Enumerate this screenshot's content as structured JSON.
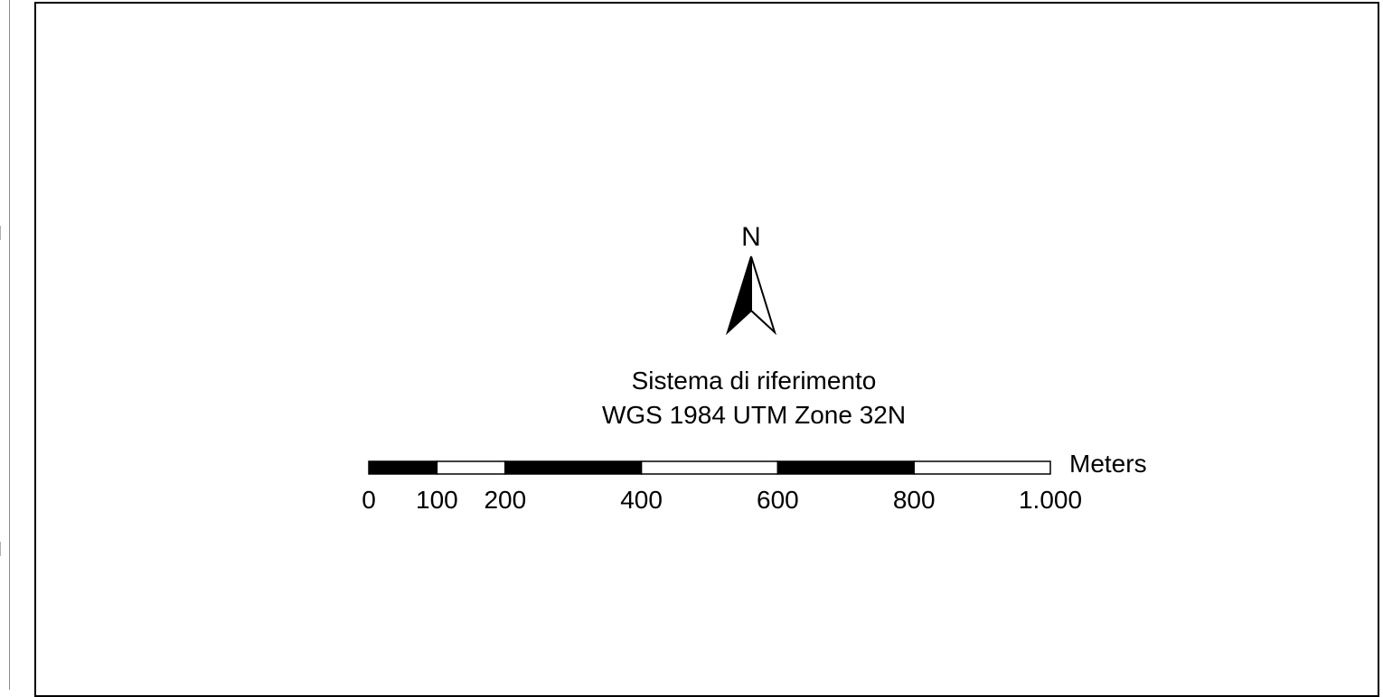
{
  "map_layout": {
    "north_arrow": {
      "label": "N",
      "icon": "north-arrow-icon"
    },
    "coordinate_system": {
      "line1": "Sistema di riferimento",
      "line2": "WGS 1984 UTM Zone 32N"
    },
    "scale_bar": {
      "units": "Meters",
      "tick_labels": [
        "0",
        "100",
        "200",
        "400",
        "600",
        "800",
        "1.000"
      ],
      "tick_values": [
        0,
        100,
        200,
        400,
        600,
        800,
        1000
      ],
      "segments": [
        {
          "from": 0,
          "to": 100,
          "fill": "black"
        },
        {
          "from": 100,
          "to": 200,
          "fill": "white"
        },
        {
          "from": 200,
          "to": 400,
          "fill": "black"
        },
        {
          "from": 400,
          "to": 600,
          "fill": "white"
        },
        {
          "from": 600,
          "to": 800,
          "fill": "black"
        },
        {
          "from": 800,
          "to": 1000,
          "fill": "white"
        }
      ]
    }
  }
}
